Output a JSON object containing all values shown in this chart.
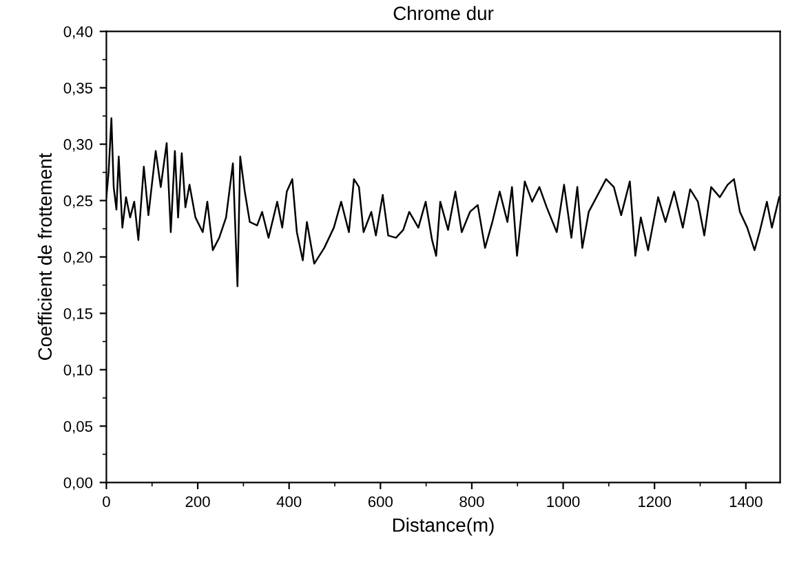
{
  "chart_data": {
    "type": "line",
    "title": "Chrome dur",
    "xlabel": "Distance(m)",
    "ylabel": "Coefficient de frottement",
    "xlim": [
      0,
      1475
    ],
    "ylim": [
      0,
      0.4
    ],
    "xticks": [
      0,
      200,
      400,
      600,
      800,
      1000,
      1200,
      1400
    ],
    "yticks": [
      {
        "value": 0,
        "label": "0,00"
      },
      {
        "value": 0.05,
        "label": "0,05"
      },
      {
        "value": 0.1,
        "label": "0,10"
      },
      {
        "value": 0.15,
        "label": "0,15"
      },
      {
        "value": 0.2,
        "label": "0,20"
      },
      {
        "value": 0.25,
        "label": "0,25"
      },
      {
        "value": 0.3,
        "label": "0,30"
      },
      {
        "value": 0.35,
        "label": "0,35"
      },
      {
        "value": 0.4,
        "label": "0,40"
      }
    ],
    "grid": false,
    "legend": false,
    "marker": "none",
    "line_style": "solid",
    "series": [
      {
        "color": "#000000",
        "x": [
          0,
          5,
          11,
          16,
          22,
          27,
          35,
          43,
          52,
          61,
          70,
          82,
          92,
          108,
          119,
          132,
          141,
          150,
          157,
          165,
          173,
          182,
          195,
          211,
          221,
          233,
          247,
          262,
          277,
          287,
          293,
          303,
          314,
          330,
          341,
          355,
          374,
          385,
          395,
          407,
          417,
          430,
          439,
          455,
          477,
          498,
          514,
          531,
          542,
          553,
          563,
          580,
          590,
          605,
          617,
          634,
          650,
          663,
          683,
          699,
          713,
          722,
          731,
          748,
          764,
          778,
          796,
          813,
          829,
          845,
          861,
          878,
          888,
          899,
          916,
          932,
          948,
          964,
          986,
          1002,
          1018,
          1031,
          1042,
          1056,
          1073,
          1094,
          1111,
          1127,
          1146,
          1158,
          1170,
          1186,
          1208,
          1224,
          1243,
          1262,
          1278,
          1295,
          1309,
          1324,
          1343,
          1360,
          1374,
          1387,
          1403,
          1419,
          1430,
          1446,
          1457,
          1473
        ],
        "values": [
          0.253,
          0.276,
          0.323,
          0.262,
          0.242,
          0.289,
          0.226,
          0.253,
          0.235,
          0.249,
          0.215,
          0.28,
          0.237,
          0.294,
          0.262,
          0.301,
          0.222,
          0.294,
          0.235,
          0.292,
          0.244,
          0.264,
          0.235,
          0.222,
          0.249,
          0.206,
          0.217,
          0.235,
          0.283,
          0.174,
          0.289,
          0.258,
          0.231,
          0.228,
          0.24,
          0.217,
          0.249,
          0.226,
          0.258,
          0.269,
          0.222,
          0.197,
          0.231,
          0.194,
          0.208,
          0.226,
          0.249,
          0.222,
          0.269,
          0.262,
          0.222,
          0.24,
          0.219,
          0.255,
          0.219,
          0.217,
          0.224,
          0.24,
          0.226,
          0.249,
          0.215,
          0.201,
          0.249,
          0.224,
          0.258,
          0.222,
          0.24,
          0.246,
          0.208,
          0.231,
          0.258,
          0.231,
          0.262,
          0.201,
          0.267,
          0.249,
          0.262,
          0.244,
          0.222,
          0.264,
          0.217,
          0.262,
          0.208,
          0.24,
          0.253,
          0.269,
          0.262,
          0.237,
          0.267,
          0.201,
          0.235,
          0.206,
          0.253,
          0.231,
          0.258,
          0.226,
          0.26,
          0.249,
          0.219,
          0.262,
          0.253,
          0.264,
          0.269,
          0.24,
          0.226,
          0.206,
          0.222,
          0.249,
          0.226,
          0.253
        ]
      }
    ]
  }
}
